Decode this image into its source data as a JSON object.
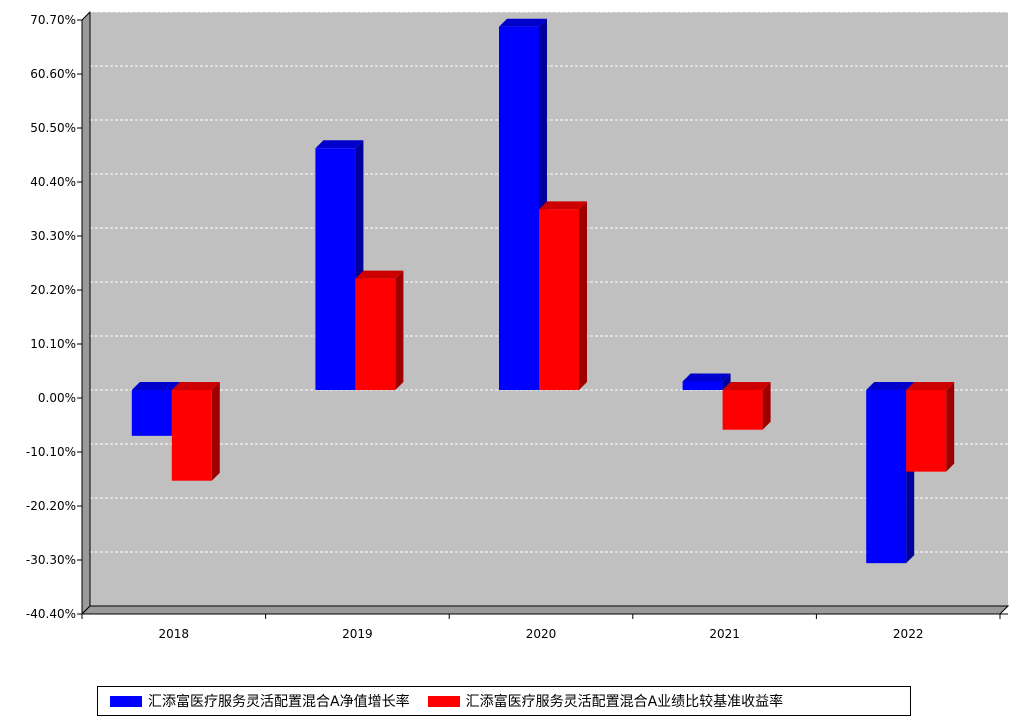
{
  "chart_data": {
    "type": "bar",
    "title": "",
    "xlabel": "",
    "ylabel": "",
    "categories": [
      "2018",
      "2019",
      "2020",
      "2021",
      "2022"
    ],
    "series": [
      {
        "name": "汇添富医疗服务灵活配置混合A净值增长率",
        "color": "#0000ff",
        "values": [
          -8.57,
          45.21,
          67.95,
          1.6,
          -32.39
        ]
      },
      {
        "name": "汇添富医疗服务灵活配置混合A业绩比较基准收益率",
        "color": "#ff0000",
        "values": [
          -16.97,
          20.83,
          33.78,
          -7.43,
          -15.27
        ]
      }
    ],
    "ylim": [
      -40.4,
      70.7
    ],
    "yticks": [
      "70.70%",
      "60.60%",
      "50.50%",
      "40.40%",
      "30.30%",
      "20.20%",
      "10.10%",
      "0.00%",
      "-10.10%",
      "-20.20%",
      "-30.30%",
      "-40.40%"
    ],
    "grid": true,
    "legend_position": "bottom",
    "plot_background": "#c0c0c0"
  }
}
